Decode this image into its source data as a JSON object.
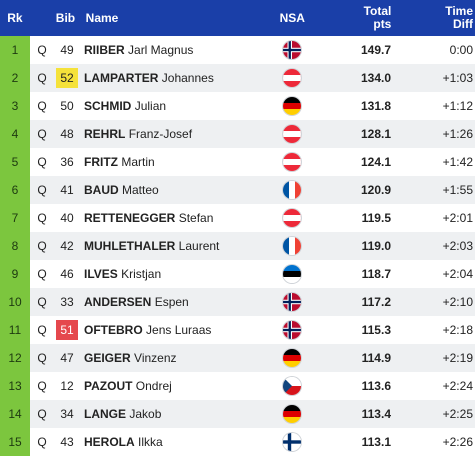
{
  "header": {
    "rank": "Rk",
    "bib": "Bib",
    "name": "Name",
    "nsa": "NSA",
    "pts_line1": "Total",
    "pts_line2": "pts",
    "time_line1": "Time",
    "time_line2": "Diff"
  },
  "colors": {
    "header_bg": "#1a3fa8",
    "rank_bg": "#7cc63e",
    "bib_yellow": "#f5e23a",
    "bib_red": "#e5484d"
  },
  "rows": [
    {
      "rank": "1",
      "q": "Q",
      "bib": "49",
      "bib_color": "none",
      "surname": "RIIBER",
      "given": "Jarl Magnus",
      "nsa": "NOR",
      "flag_icon": "norway-flag-icon",
      "pts": "149.7",
      "time": "0:00"
    },
    {
      "rank": "2",
      "q": "Q",
      "bib": "52",
      "bib_color": "yellow",
      "surname": "LAMPARTER",
      "given": "Johannes",
      "nsa": "AUT",
      "flag_icon": "austria-flag-icon",
      "pts": "134.0",
      "time": "+1:03"
    },
    {
      "rank": "3",
      "q": "Q",
      "bib": "50",
      "bib_color": "none",
      "surname": "SCHMID",
      "given": "Julian",
      "nsa": "GER",
      "flag_icon": "germany-flag-icon",
      "pts": "131.8",
      "time": "+1:12"
    },
    {
      "rank": "4",
      "q": "Q",
      "bib": "48",
      "bib_color": "none",
      "surname": "REHRL",
      "given": "Franz-Josef",
      "nsa": "AUT",
      "flag_icon": "austria-flag-icon",
      "pts": "128.1",
      "time": "+1:26"
    },
    {
      "rank": "5",
      "q": "Q",
      "bib": "36",
      "bib_color": "none",
      "surname": "FRITZ",
      "given": "Martin",
      "nsa": "AUT",
      "flag_icon": "austria-flag-icon",
      "pts": "124.1",
      "time": "+1:42"
    },
    {
      "rank": "6",
      "q": "Q",
      "bib": "41",
      "bib_color": "none",
      "surname": "BAUD",
      "given": "Matteo",
      "nsa": "FRA",
      "flag_icon": "france-flag-icon",
      "pts": "120.9",
      "time": "+1:55"
    },
    {
      "rank": "7",
      "q": "Q",
      "bib": "40",
      "bib_color": "none",
      "surname": "RETTENEGGER",
      "given": "Stefan",
      "nsa": "AUT",
      "flag_icon": "austria-flag-icon",
      "pts": "119.5",
      "time": "+2:01"
    },
    {
      "rank": "8",
      "q": "Q",
      "bib": "42",
      "bib_color": "none",
      "surname": "MUHLETHALER",
      "given": "Laurent",
      "nsa": "FRA",
      "flag_icon": "france-flag-icon",
      "pts": "119.0",
      "time": "+2:03"
    },
    {
      "rank": "9",
      "q": "Q",
      "bib": "46",
      "bib_color": "none",
      "surname": "ILVES",
      "given": "Kristjan",
      "nsa": "EST",
      "flag_icon": "estonia-flag-icon",
      "pts": "118.7",
      "time": "+2:04"
    },
    {
      "rank": "10",
      "q": "Q",
      "bib": "33",
      "bib_color": "none",
      "surname": "ANDERSEN",
      "given": "Espen",
      "nsa": "NOR",
      "flag_icon": "norway-flag-icon",
      "pts": "117.2",
      "time": "+2:10"
    },
    {
      "rank": "11",
      "q": "Q",
      "bib": "51",
      "bib_color": "red",
      "surname": "OFTEBRO",
      "given": "Jens Luraas",
      "nsa": "NOR",
      "flag_icon": "norway-flag-icon",
      "pts": "115.3",
      "time": "+2:18"
    },
    {
      "rank": "12",
      "q": "Q",
      "bib": "47",
      "bib_color": "none",
      "surname": "GEIGER",
      "given": "Vinzenz",
      "nsa": "GER",
      "flag_icon": "germany-flag-icon",
      "pts": "114.9",
      "time": "+2:19"
    },
    {
      "rank": "13",
      "q": "Q",
      "bib": "12",
      "bib_color": "none",
      "surname": "PAZOUT",
      "given": "Ondrej",
      "nsa": "CZE",
      "flag_icon": "czechia-flag-icon",
      "pts": "113.6",
      "time": "+2:24"
    },
    {
      "rank": "14",
      "q": "Q",
      "bib": "34",
      "bib_color": "none",
      "surname": "LANGE",
      "given": "Jakob",
      "nsa": "GER",
      "flag_icon": "germany-flag-icon",
      "pts": "113.4",
      "time": "+2:25"
    },
    {
      "rank": "15",
      "q": "Q",
      "bib": "43",
      "bib_color": "none",
      "surname": "HEROLA",
      "given": "Ilkka",
      "nsa": "FIN",
      "flag_icon": "finland-flag-icon",
      "pts": "113.1",
      "time": "+2:26"
    }
  ]
}
